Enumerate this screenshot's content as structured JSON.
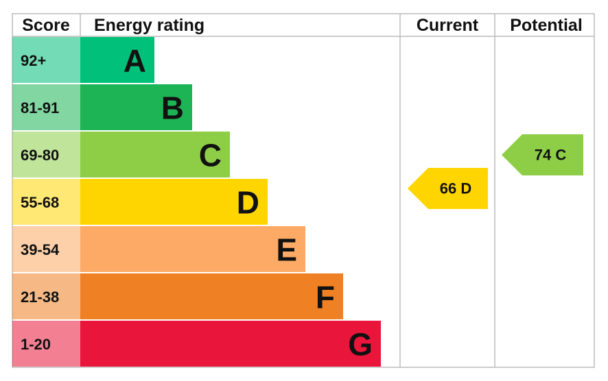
{
  "header": [
    "Score",
    "Energy rating",
    "Current",
    "Potential"
  ],
  "rows": [
    {
      "score": "92+",
      "rating": "A",
      "color": "#00c07a"
    },
    {
      "score": "81-91",
      "rating": "B",
      "color": "#1cb455"
    },
    {
      "score": "69-80",
      "rating": "C",
      "color": "#8dce46"
    },
    {
      "score": "55-68",
      "rating": "D",
      "color": "#ffd500"
    },
    {
      "score": "39-54",
      "rating": "E",
      "color": "#fcaa65"
    },
    {
      "score": "21-38",
      "rating": "F",
      "color": "#ef8023"
    },
    {
      "score": "1-20",
      "rating": "G",
      "color": "#e9153b"
    }
  ],
  "current": {
    "label": "66 D",
    "color": "#ffd500"
  },
  "potential": {
    "label": "74 C",
    "color": "#8dce46"
  }
}
